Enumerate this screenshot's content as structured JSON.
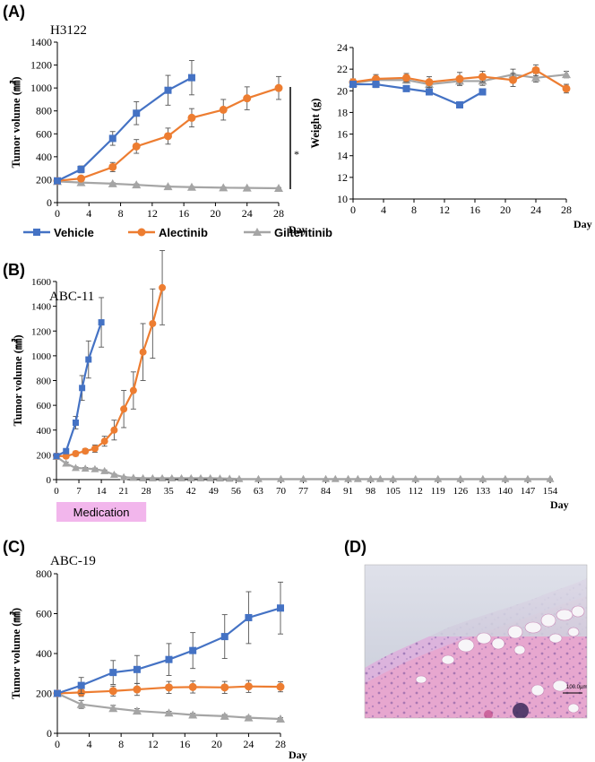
{
  "colors": {
    "vehicle": "#4472C4",
    "alectinib": "#ED7D31",
    "gilteritinib": "#A5A5A5",
    "medication": "#F2B6EC"
  },
  "panels": {
    "a": "(A)",
    "b": "(B)",
    "c": "(C)",
    "d": "(D)"
  },
  "legend": [
    {
      "name": "Vehicle",
      "marker": "square",
      "color": "#4472C4"
    },
    {
      "name": "Alectinib",
      "marker": "circle",
      "color": "#ED7D31"
    },
    {
      "name": "Gilteritinib",
      "marker": "triangle",
      "color": "#A5A5A5"
    }
  ],
  "medication_label": "Medication",
  "medication_days": [
    0,
    28
  ],
  "significance_mark": "*",
  "histology": {
    "scale_text": "100.0μm",
    "description_icon": "he-stain-tissue-image"
  },
  "chart_data": [
    {
      "id": "A1",
      "type": "line",
      "title": "H3122",
      "ylabel": "Tumor volume (㎣)",
      "xlabel": "Day",
      "ylim": [
        0,
        1400
      ],
      "yticks": [
        0,
        200,
        400,
        600,
        800,
        1000,
        1200,
        1400
      ],
      "xticks": [
        0,
        4,
        8,
        12,
        16,
        20,
        24,
        28
      ],
      "xlim": [
        0,
        28
      ],
      "series": [
        {
          "name": "Vehicle",
          "x": [
            0,
            3,
            7,
            10,
            14,
            17
          ],
          "values": [
            190,
            290,
            560,
            780,
            980,
            1090
          ],
          "err": [
            10,
            30,
            60,
            100,
            130,
            150
          ]
        },
        {
          "name": "Alectinib",
          "x": [
            0,
            3,
            7,
            10,
            14,
            17,
            21,
            24,
            28
          ],
          "values": [
            190,
            210,
            310,
            490,
            580,
            740,
            810,
            910,
            1000
          ],
          "err": [
            10,
            20,
            40,
            60,
            70,
            80,
            90,
            100,
            100
          ]
        },
        {
          "name": "Gilteritinib",
          "x": [
            0,
            3,
            7,
            10,
            14,
            17,
            21,
            24,
            28
          ],
          "values": [
            185,
            175,
            165,
            155,
            140,
            135,
            130,
            128,
            125
          ],
          "err": [
            8,
            8,
            8,
            8,
            6,
            6,
            6,
            6,
            6
          ]
        }
      ]
    },
    {
      "id": "A2",
      "type": "line",
      "title": "",
      "ylabel": "Weight (g)",
      "xlabel": "Day",
      "ylim": [
        10,
        24
      ],
      "yticks": [
        10,
        12,
        14,
        16,
        18,
        20,
        22,
        24
      ],
      "xticks": [
        0,
        4,
        8,
        12,
        16,
        20,
        24,
        28
      ],
      "xlim": [
        0,
        28
      ],
      "series": [
        {
          "name": "Vehicle",
          "x": [
            0,
            3,
            7,
            10,
            14,
            17
          ],
          "values": [
            20.6,
            20.6,
            20.2,
            19.9,
            18.7,
            19.9
          ],
          "err": [
            0.2,
            0.3,
            0.2,
            0.2,
            0.2,
            0.2
          ]
        },
        {
          "name": "Alectinib",
          "x": [
            0,
            3,
            7,
            10,
            14,
            17,
            21,
            24,
            28
          ],
          "values": [
            20.8,
            21.1,
            21.2,
            20.8,
            21.1,
            21.3,
            21.0,
            21.9,
            20.2
          ],
          "err": [
            0.3,
            0.4,
            0.4,
            0.5,
            0.6,
            0.5,
            0.6,
            0.5,
            0.4
          ]
        },
        {
          "name": "Gilteritinib",
          "x": [
            0,
            3,
            7,
            10,
            14,
            17,
            21,
            24,
            28
          ],
          "values": [
            20.7,
            21.0,
            21.0,
            20.6,
            20.9,
            20.9,
            21.5,
            21.2,
            21.5
          ],
          "err": [
            0.3,
            0.3,
            0.3,
            0.4,
            0.4,
            0.4,
            0.5,
            0.4,
            0.3
          ]
        }
      ]
    },
    {
      "id": "B",
      "type": "line",
      "title": "ABC-11",
      "ylabel": "Tumor volume (㎣)",
      "xlabel": "Day",
      "ylim": [
        0,
        1600
      ],
      "yticks": [
        0,
        200,
        400,
        600,
        800,
        1000,
        1200,
        1400,
        1600
      ],
      "xticks": [
        0,
        7,
        14,
        21,
        28,
        35,
        42,
        49,
        56,
        63,
        70,
        77,
        84,
        91,
        98,
        105,
        112,
        119,
        126,
        133,
        140,
        147,
        154
      ],
      "xlim": [
        0,
        154
      ],
      "series": [
        {
          "name": "Vehicle",
          "x": [
            0,
            3,
            6,
            8,
            10,
            14
          ],
          "values": [
            190,
            230,
            460,
            740,
            970,
            1270
          ],
          "err": [
            10,
            20,
            50,
            100,
            150,
            200
          ]
        },
        {
          "name": "Alectinib",
          "x": [
            0,
            3,
            6,
            9,
            12,
            15,
            18,
            21,
            24,
            27,
            30,
            33
          ],
          "values": [
            190,
            190,
            210,
            230,
            250,
            310,
            400,
            570,
            720,
            1030,
            1260,
            1550
          ],
          "err": [
            10,
            10,
            20,
            20,
            30,
            40,
            80,
            150,
            150,
            230,
            280,
            300
          ]
        },
        {
          "name": "Gilteritinib",
          "x": [
            0,
            3,
            6,
            9,
            12,
            15,
            18,
            21,
            24,
            27,
            30,
            33,
            36,
            39,
            42,
            45,
            48,
            51,
            54,
            57,
            63,
            70,
            77,
            84,
            87,
            91,
            94,
            98,
            101,
            105,
            112,
            119,
            126,
            133,
            140,
            147,
            154
          ],
          "values": [
            185,
            130,
            95,
            90,
            85,
            70,
            40,
            20,
            15,
            12,
            12,
            12,
            12,
            12,
            12,
            12,
            12,
            10,
            8,
            5,
            5,
            5,
            5,
            5,
            5,
            5,
            5,
            5,
            5,
            5,
            5,
            5,
            5,
            5,
            5,
            5,
            5
          ],
          "err": [
            8,
            10,
            8,
            8,
            8,
            8,
            5,
            4,
            3,
            3,
            3,
            3,
            3,
            3,
            3,
            3,
            3,
            2,
            2,
            1,
            1,
            1,
            1,
            1,
            1,
            1,
            1,
            1,
            1,
            1,
            1,
            1,
            1,
            1,
            1,
            1,
            1
          ]
        }
      ]
    },
    {
      "id": "C",
      "type": "line",
      "title": "ABC-19",
      "ylabel": "Tumor volume (㎣)",
      "xlabel": "Day",
      "ylim": [
        0,
        800
      ],
      "yticks": [
        0,
        200,
        400,
        600,
        800
      ],
      "xticks": [
        0,
        4,
        8,
        12,
        16,
        20,
        24,
        28
      ],
      "xlim": [
        0,
        28
      ],
      "series": [
        {
          "name": "Vehicle",
          "x": [
            0,
            3,
            7,
            10,
            14,
            17,
            21,
            24,
            28
          ],
          "values": [
            200,
            240,
            305,
            320,
            370,
            415,
            485,
            580,
            628
          ],
          "err": [
            15,
            40,
            60,
            70,
            80,
            90,
            110,
            130,
            130
          ]
        },
        {
          "name": "Alectinib",
          "x": [
            0,
            3,
            7,
            10,
            14,
            17,
            21,
            24,
            28
          ],
          "values": [
            200,
            205,
            212,
            220,
            230,
            232,
            230,
            235,
            233
          ],
          "err": [
            15,
            20,
            25,
            30,
            30,
            30,
            30,
            30,
            25
          ]
        },
        {
          "name": "Gilteritinib",
          "x": [
            0,
            3,
            7,
            10,
            14,
            17,
            21,
            24,
            28
          ],
          "values": [
            200,
            145,
            125,
            112,
            102,
            92,
            86,
            78,
            72
          ],
          "err": [
            15,
            20,
            15,
            12,
            8,
            8,
            8,
            8,
            6
          ]
        }
      ]
    }
  ]
}
